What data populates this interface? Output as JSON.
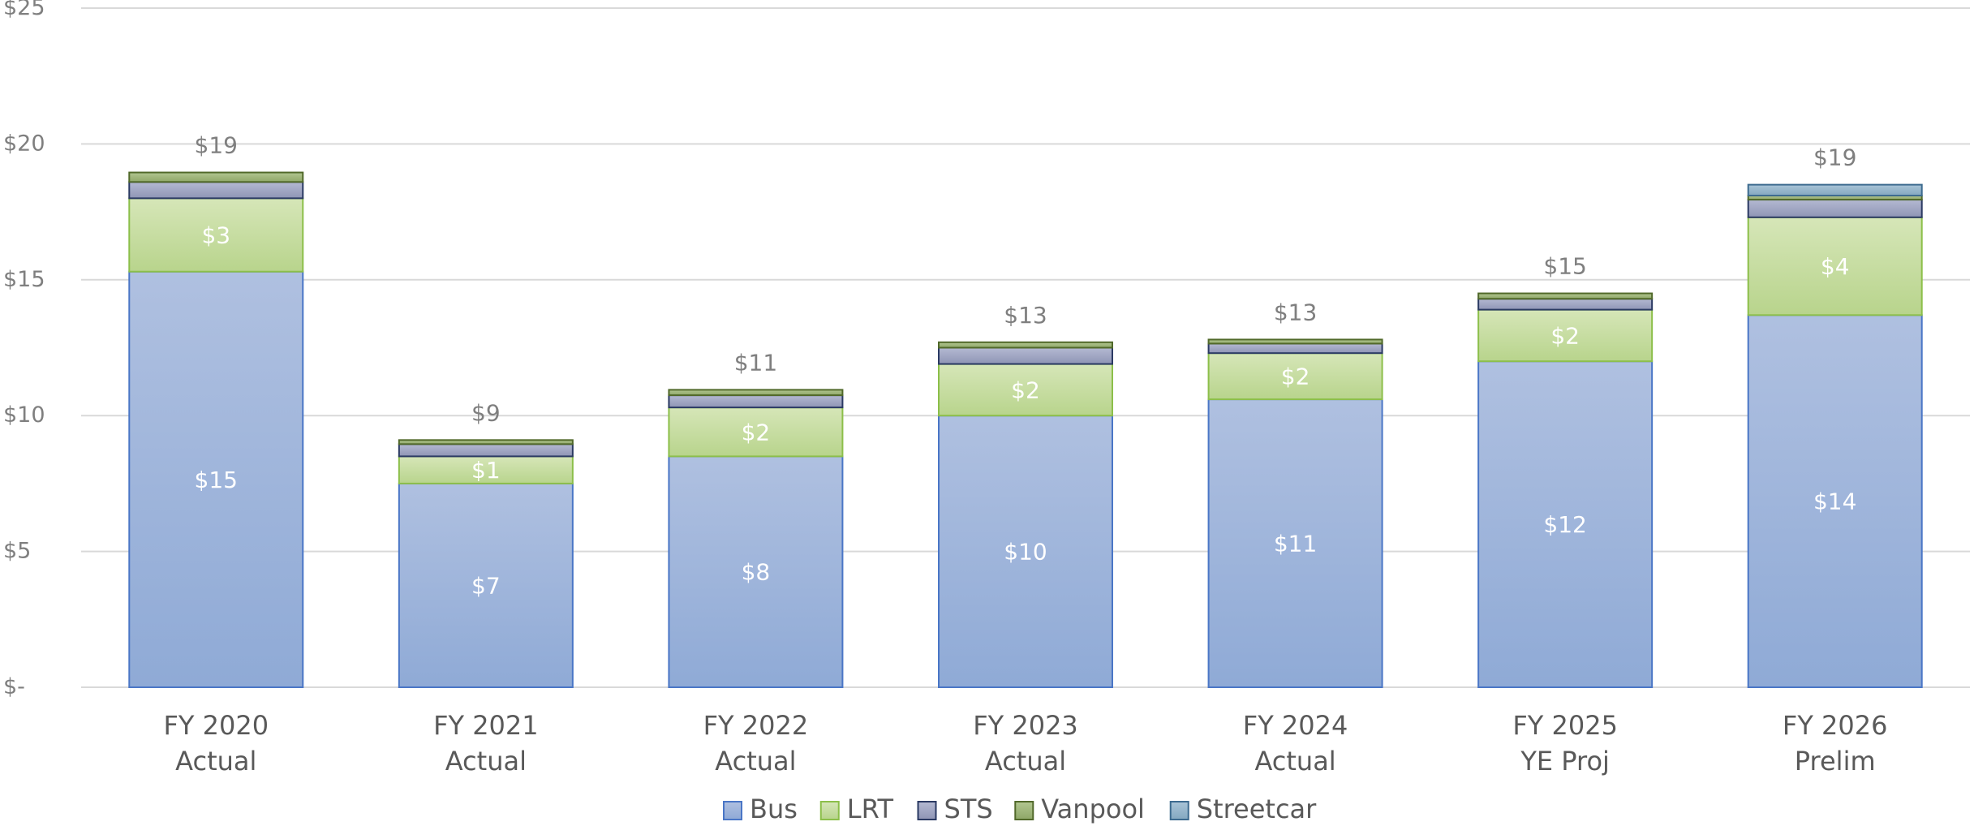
{
  "chart_data": {
    "type": "bar",
    "stacked": true,
    "categories": [
      [
        "FY 2020",
        "Actual"
      ],
      [
        "FY 2021",
        "Actual"
      ],
      [
        "FY 2022",
        "Actual"
      ],
      [
        "FY 2023",
        "Actual"
      ],
      [
        "FY 2024",
        "Actual"
      ],
      [
        "FY 2025",
        "YE Proj"
      ],
      [
        "FY 2026",
        "Prelim"
      ]
    ],
    "series": [
      {
        "name": "Bus",
        "values": [
          15.3,
          7.5,
          8.5,
          10.0,
          10.6,
          12.0,
          13.7
        ],
        "labels": [
          "$15",
          "$7",
          "$8",
          "$10",
          "$11",
          "$12",
          "$14"
        ],
        "color_top": "#afc0e0",
        "color_bottom": "#8faad6",
        "stroke": "#4a76c6",
        "label_color": "#ffffff"
      },
      {
        "name": "LRT",
        "values": [
          2.7,
          1.0,
          1.8,
          1.9,
          1.7,
          1.9,
          3.6
        ],
        "labels": [
          "$3",
          "$1",
          "$2",
          "$2",
          "$2",
          "$2",
          "$4"
        ],
        "color_top": "#d6e6b8",
        "color_bottom": "#b8d48c",
        "stroke": "#8cbf4a",
        "label_color": "#ffffff"
      },
      {
        "name": "STS",
        "values": [
          0.6,
          0.45,
          0.45,
          0.6,
          0.35,
          0.4,
          0.65
        ],
        "labels": [],
        "color_top": "#b4b9d2",
        "color_bottom": "#8f95b5",
        "stroke": "#2b3a63",
        "label_color": "#ffffff"
      },
      {
        "name": "Vanpool",
        "values": [
          0.35,
          0.15,
          0.2,
          0.2,
          0.15,
          0.2,
          0.15
        ],
        "labels": [],
        "color_top": "#b2c690",
        "color_bottom": "#8ea768",
        "stroke": "#51692a",
        "label_color": "#ffffff"
      },
      {
        "name": "Streetcar",
        "values": [
          0,
          0,
          0,
          0,
          0,
          0,
          0.4
        ],
        "labels": [],
        "color_top": "#a9c4d7",
        "color_bottom": "#84a8c0",
        "stroke": "#3d6b8f",
        "label_color": "#ffffff"
      }
    ],
    "total_labels": [
      "$19",
      "$9",
      "$11",
      "$13",
      "$13",
      "$15",
      "$19"
    ],
    "ylim": [
      0,
      25
    ],
    "yticks": [
      0,
      5,
      10,
      15,
      20,
      25
    ],
    "ytick_labels": [
      "$-",
      "$5",
      "$10",
      "$15",
      "$20",
      "$25"
    ],
    "grid": true,
    "legend_position": "bottom-center",
    "title": "",
    "xlabel": "",
    "ylabel": ""
  },
  "colors": {
    "gridline": "#d9d9d9",
    "axis_text": "#7f7f7f",
    "category_text": "#595959",
    "total_label": "#7f7f7f"
  }
}
